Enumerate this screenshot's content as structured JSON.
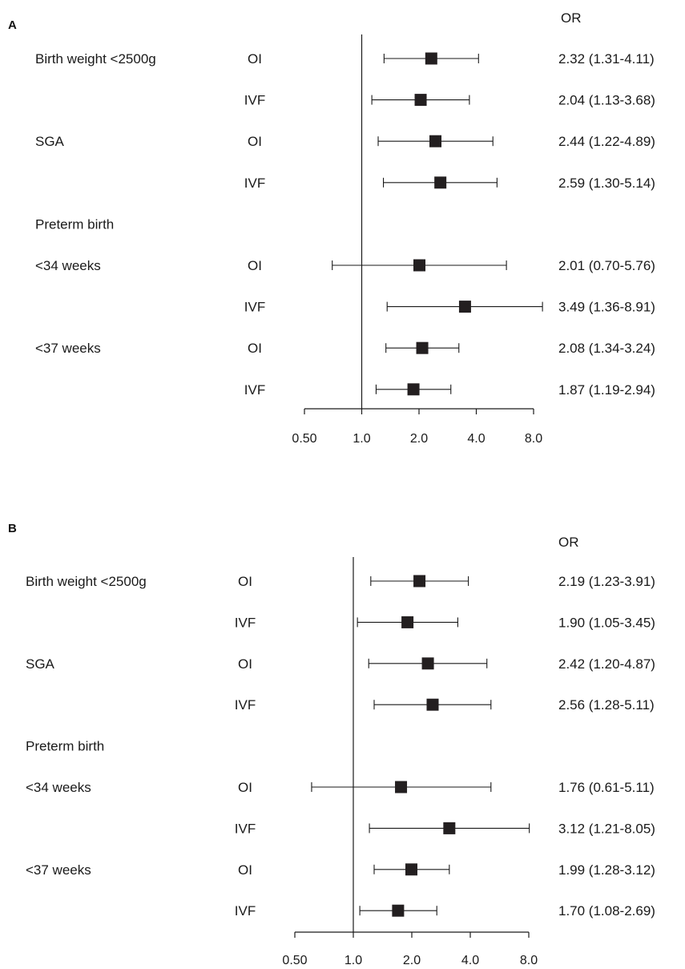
{
  "chart_data": [
    {
      "type": "forest",
      "panel": "A",
      "stat_header": "OR",
      "x_scale": "log2",
      "xlim": [
        0.5,
        8.0
      ],
      "reference_line": 1.0,
      "x_ticks": [
        0.5,
        1.0,
        2.0,
        4.0,
        8.0
      ],
      "x_tick_labels": [
        "0.50",
        "1.0",
        "2.0",
        "4.0",
        "8.0"
      ],
      "rows": [
        {
          "outcome": "Birth weight <2500g",
          "group": "OI",
          "or": 2.32,
          "lo": 1.31,
          "hi": 4.11,
          "stat": "2.32 (1.31-4.11)"
        },
        {
          "outcome": "",
          "group": "IVF",
          "or": 2.04,
          "lo": 1.13,
          "hi": 3.68,
          "stat": "2.04 (1.13-3.68)"
        },
        {
          "outcome": "SGA",
          "group": "OI",
          "or": 2.44,
          "lo": 1.22,
          "hi": 4.89,
          "stat": "2.44 (1.22-4.89)"
        },
        {
          "outcome": "",
          "group": "IVF",
          "or": 2.59,
          "lo": 1.3,
          "hi": 5.14,
          "stat": "2.59 (1.30-5.14)"
        },
        {
          "outcome": "Preterm birth",
          "group": "",
          "or": null,
          "lo": null,
          "hi": null,
          "stat": ""
        },
        {
          "outcome": "<34 weeks",
          "group": "OI",
          "or": 2.01,
          "lo": 0.7,
          "hi": 5.76,
          "stat": "2.01 (0.70-5.76)"
        },
        {
          "outcome": "",
          "group": "IVF",
          "or": 3.49,
          "lo": 1.36,
          "hi": 8.91,
          "stat": "3.49 (1.36-8.91)"
        },
        {
          "outcome": "<37 weeks",
          "group": "OI",
          "or": 2.08,
          "lo": 1.34,
          "hi": 3.24,
          "stat": "2.08 (1.34-3.24)"
        },
        {
          "outcome": "",
          "group": "IVF",
          "or": 1.87,
          "lo": 1.19,
          "hi": 2.94,
          "stat": "1.87 (1.19-2.94)"
        }
      ]
    },
    {
      "type": "forest",
      "panel": "B",
      "stat_header": "OR",
      "x_scale": "log2",
      "xlim": [
        0.5,
        8.0
      ],
      "reference_line": 1.0,
      "x_ticks": [
        0.5,
        1.0,
        2.0,
        4.0,
        8.0
      ],
      "x_tick_labels": [
        "0.50",
        "1.0",
        "2.0",
        "4.0",
        "8.0"
      ],
      "rows": [
        {
          "outcome": "Birth weight <2500g",
          "group": "OI",
          "or": 2.19,
          "lo": 1.23,
          "hi": 3.91,
          "stat": "2.19 (1.23-3.91)"
        },
        {
          "outcome": "",
          "group": "IVF",
          "or": 1.9,
          "lo": 1.05,
          "hi": 3.45,
          "stat": "1.90 (1.05-3.45)"
        },
        {
          "outcome": "SGA",
          "group": "OI",
          "or": 2.42,
          "lo": 1.2,
          "hi": 4.87,
          "stat": "2.42 (1.20-4.87)"
        },
        {
          "outcome": "",
          "group": "IVF",
          "or": 2.56,
          "lo": 1.28,
          "hi": 5.11,
          "stat": "2.56 (1.28-5.11)"
        },
        {
          "outcome": "Preterm birth",
          "group": "",
          "or": null,
          "lo": null,
          "hi": null,
          "stat": ""
        },
        {
          "outcome": "<34 weeks",
          "group": "OI",
          "or": 1.76,
          "lo": 0.61,
          "hi": 5.11,
          "stat": "1.76 (0.61-5.11)"
        },
        {
          "outcome": "",
          "group": "IVF",
          "or": 3.12,
          "lo": 1.21,
          "hi": 8.05,
          "stat": "3.12 (1.21-8.05)"
        },
        {
          "outcome": "<37 weeks",
          "group": "OI",
          "or": 1.99,
          "lo": 1.28,
          "hi": 3.12,
          "stat": "1.99 (1.28-3.12)"
        },
        {
          "outcome": "",
          "group": "IVF",
          "or": 1.7,
          "lo": 1.08,
          "hi": 2.69,
          "stat": "1.70 (1.08-2.69)"
        }
      ]
    }
  ],
  "colors": {
    "marker": "#231f20",
    "line": "#1a1a1a",
    "text": "#1a1a1a"
  }
}
